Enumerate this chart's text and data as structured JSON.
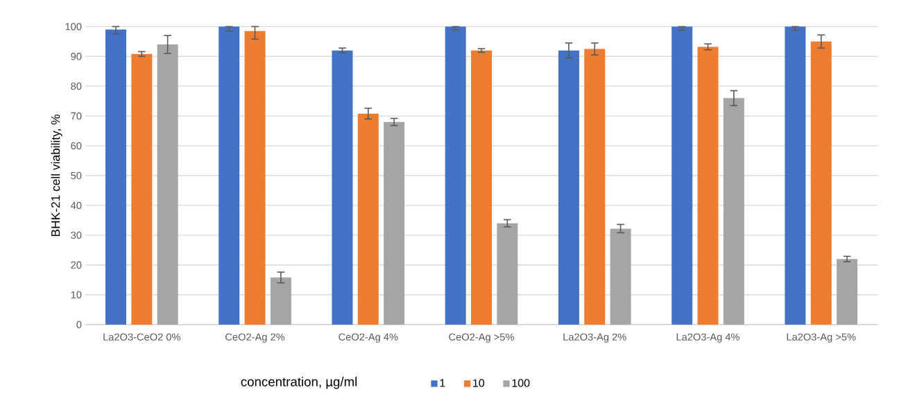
{
  "chart_data": {
    "type": "bar",
    "ylabel": "BHK-21 cell viability, %",
    "legend_title": "concentration, µg/ml",
    "categories": [
      "La2O3-CeO2 0%",
      "CeO2-Ag 2%",
      "CeO2-Ag 4%",
      "CeO2-Ag >5%",
      "La2O3-Ag 2%",
      "La2O3-Ag 4%",
      "La2O3-Ag >5%"
    ],
    "series": [
      {
        "name": "1",
        "color": "#4472c4",
        "values": [
          99,
          100,
          92,
          100,
          92,
          100,
          100
        ],
        "errors": [
          [
            97.5,
            100
          ],
          [
            98.5,
            100
          ],
          0.8,
          [
            98.8,
            100
          ],
          2.5,
          [
            98.8,
            100
          ],
          [
            98.8,
            100
          ]
        ]
      },
      {
        "name": "10",
        "color": "#ed7d31",
        "values": [
          90.8,
          98.5,
          70.8,
          92,
          92.5,
          93.2,
          95
        ],
        "errors": [
          0.8,
          [
            95.8,
            100
          ],
          1.8,
          0.6,
          2,
          1,
          2.2
        ]
      },
      {
        "name": "100",
        "color": "#a5a5a5",
        "values": [
          94,
          15.8,
          68,
          34,
          32.2,
          76,
          22
        ],
        "errors": [
          3,
          1.8,
          1.2,
          1.2,
          1.4,
          2.5,
          0.9
        ]
      }
    ],
    "ylim": [
      0,
      100
    ],
    "yticks": [
      0,
      10,
      20,
      30,
      40,
      50,
      60,
      70,
      80,
      90,
      100
    ],
    "grid": "y",
    "legend": "bottom"
  }
}
